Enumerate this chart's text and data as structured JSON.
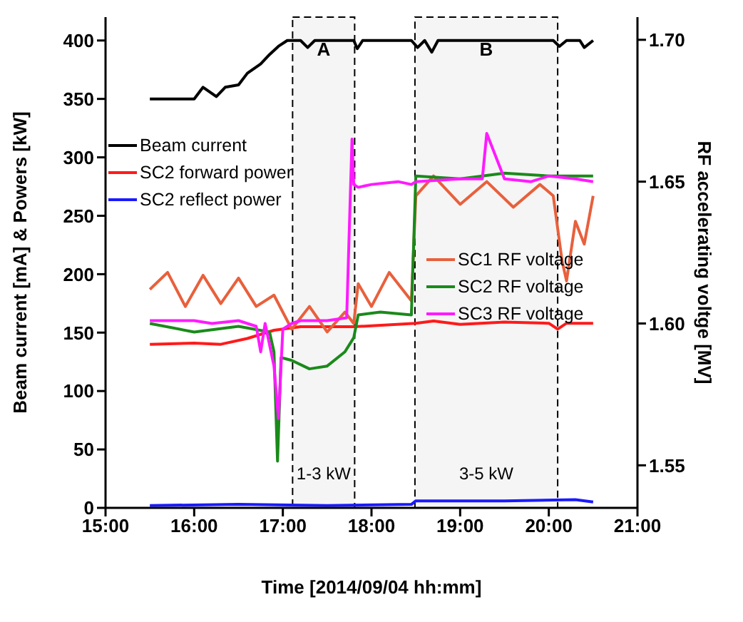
{
  "chart_data": {
    "type": "line",
    "xlabel": "Time [2014/09/04 hh:mm]",
    "ylabel": "Beam current [mA] & Powers [kW]",
    "y2label": "RF accelerating voltge [MV]",
    "xlim": [
      15,
      21
    ],
    "xticks": [
      {
        "value": 15,
        "label": "15:00"
      },
      {
        "value": 16,
        "label": "16:00"
      },
      {
        "value": 17,
        "label": "17:00"
      },
      {
        "value": 18,
        "label": "18:00"
      },
      {
        "value": 19,
        "label": "19:00"
      },
      {
        "value": 20,
        "label": "20:00"
      },
      {
        "value": 21,
        "label": "21:00"
      }
    ],
    "ylim": [
      0,
      420
    ],
    "yticks": [
      0,
      50,
      100,
      150,
      200,
      250,
      300,
      350,
      400
    ],
    "y2lim": [
      1.535,
      1.708
    ],
    "y2ticks": [
      {
        "value": 1.55,
        "label": "1.55"
      },
      {
        "value": 1.6,
        "label": "1.60"
      },
      {
        "value": 1.65,
        "label": "1.65"
      },
      {
        "value": 1.7,
        "label": "1.70"
      }
    ],
    "legend": "top left",
    "grid": false,
    "marker": "none",
    "line_style": "solid",
    "series": [
      {
        "name": "Beam current",
        "color": "#000000",
        "x": [
          15.5,
          16.0,
          16.1,
          16.25,
          16.35,
          16.5,
          16.6,
          16.75,
          16.85,
          16.95,
          17.05,
          17.2,
          17.28,
          17.36,
          17.8,
          17.84,
          17.9,
          18.45,
          18.52,
          18.6,
          18.68,
          18.75,
          20.05,
          20.12,
          20.2,
          20.35,
          20.4,
          20.5
        ],
        "values": [
          350,
          350,
          360,
          352,
          360,
          362,
          372,
          380,
          388,
          395,
          400,
          400,
          394,
          400,
          400,
          393,
          400,
          400,
          394,
          400,
          390,
          400,
          400,
          395,
          400,
          400,
          394,
          400
        ]
      },
      {
        "name": "SC2 forward power",
        "color": "#ff1a1a",
        "x": [
          15.5,
          16.0,
          16.3,
          16.6,
          16.9,
          17.2,
          17.8,
          18.5,
          18.7,
          19.0,
          19.5,
          20.0,
          20.1,
          20.2,
          20.5
        ],
        "values": [
          140,
          141,
          140,
          145,
          152,
          155,
          155,
          158,
          160,
          157,
          159,
          158,
          153,
          158,
          158
        ]
      },
      {
        "name": "SC2 reflect power",
        "color": "#1a1aff",
        "x": [
          15.5,
          16.5,
          17.5,
          18.45,
          18.5,
          19.5,
          20.3,
          20.5
        ],
        "values": [
          2,
          3,
          2,
          3,
          6,
          6,
          7,
          5
        ]
      },
      {
        "name": "SC1 RF voltage",
        "color": "#e8603c",
        "axis": "y2",
        "x": [
          15.5,
          15.7,
          15.9,
          16.1,
          16.3,
          16.5,
          16.7,
          16.9,
          17.1,
          17.3,
          17.5,
          17.7,
          17.8,
          17.85,
          18.0,
          18.2,
          18.45,
          18.5,
          18.7,
          19.0,
          19.3,
          19.6,
          19.9,
          20.05,
          20.15,
          20.2,
          20.3,
          20.4,
          20.5
        ],
        "values": [
          1.612,
          1.618,
          1.606,
          1.617,
          1.607,
          1.616,
          1.606,
          1.61,
          1.598,
          1.606,
          1.597,
          1.604,
          1.6,
          1.614,
          1.606,
          1.618,
          1.608,
          1.645,
          1.652,
          1.642,
          1.65,
          1.641,
          1.649,
          1.645,
          1.622,
          1.615,
          1.636,
          1.628,
          1.645
        ]
      },
      {
        "name": "SC2 RF voltage",
        "color": "#1a8a1a",
        "axis": "y2",
        "x": [
          15.5,
          16.0,
          16.5,
          16.85,
          16.9,
          16.94,
          16.98,
          17.1,
          17.3,
          17.5,
          17.7,
          17.8,
          17.85,
          18.1,
          18.45,
          18.5,
          19.0,
          19.5,
          20.0,
          20.5
        ],
        "values": [
          1.6,
          1.597,
          1.599,
          1.597,
          1.59,
          1.5515,
          1.588,
          1.587,
          1.584,
          1.585,
          1.59,
          1.595,
          1.603,
          1.604,
          1.603,
          1.652,
          1.651,
          1.653,
          1.652,
          1.652
        ]
      },
      {
        "name": "SC3 RF voltage",
        "color": "#ff1aff",
        "axis": "y2",
        "x": [
          15.5,
          16.0,
          16.2,
          16.5,
          16.7,
          16.75,
          16.8,
          16.9,
          16.95,
          17.0,
          17.1,
          17.2,
          17.5,
          17.72,
          17.78,
          17.8,
          17.85,
          18.0,
          18.3,
          18.45,
          18.5,
          19.0,
          19.25,
          19.3,
          19.5,
          19.8,
          20.0,
          20.3,
          20.5
        ],
        "values": [
          1.601,
          1.601,
          1.6,
          1.601,
          1.599,
          1.59,
          1.6,
          1.585,
          1.5665,
          1.598,
          1.6,
          1.601,
          1.601,
          1.602,
          1.665,
          1.649,
          1.648,
          1.649,
          1.65,
          1.649,
          1.65,
          1.651,
          1.651,
          1.667,
          1.651,
          1.65,
          1.652,
          1.651,
          1.65
        ]
      }
    ],
    "bands": [
      {
        "axis": "x",
        "from": 17.11,
        "to": 17.81,
        "label": "A"
      },
      {
        "axis": "x",
        "from": 18.49,
        "to": 20.1,
        "label": "B"
      }
    ],
    "annotations": [
      "1-3 kW",
      "3-5 kW"
    ]
  }
}
